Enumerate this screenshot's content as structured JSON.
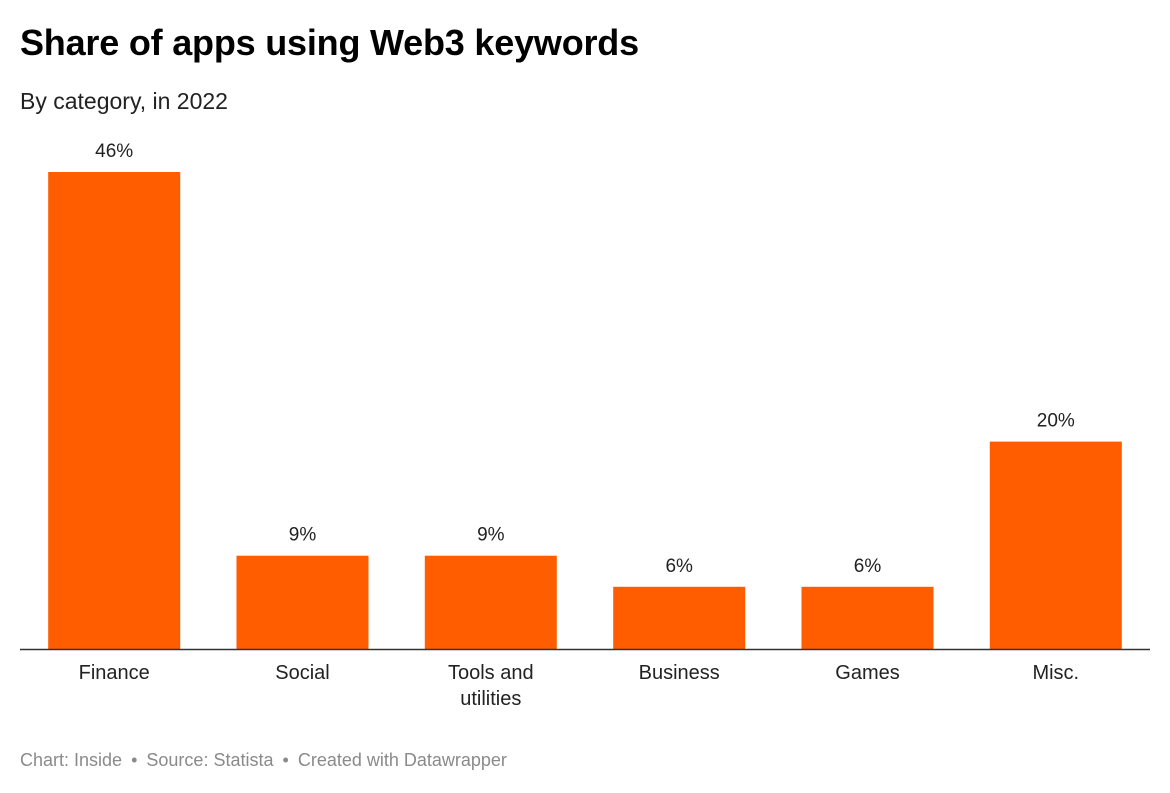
{
  "header": {
    "title": "Share of apps using Web3 keywords",
    "subtitle": "By category, in 2022"
  },
  "chart_data": {
    "type": "bar",
    "title": "Share of apps using Web3 keywords",
    "subtitle": "By category, in 2022",
    "categories": [
      "Finance",
      "Social",
      "Tools and utilities",
      "Business",
      "Games",
      "Misc."
    ],
    "category_lines": [
      [
        "Finance"
      ],
      [
        "Social"
      ],
      [
        "Tools and",
        "utilities"
      ],
      [
        "Business"
      ],
      [
        "Games"
      ],
      [
        "Misc."
      ]
    ],
    "values": [
      46,
      9,
      9,
      6,
      6,
      20
    ],
    "data_labels": [
      "46%",
      "9%",
      "9%",
      "6%",
      "6%",
      "20%"
    ],
    "unit": "%",
    "ylim": [
      0,
      46
    ],
    "xlabel": "",
    "ylabel": "",
    "grid": false,
    "bar_color": "#ff5d00",
    "axis_color": "#333333"
  },
  "footer": {
    "chart_credit": "Chart: Inside",
    "source": "Source: Statista",
    "created_with": "Created with Datawrapper",
    "separator": "•"
  }
}
